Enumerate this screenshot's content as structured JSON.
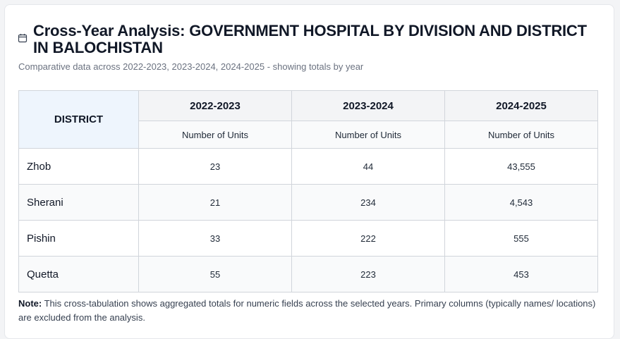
{
  "header": {
    "title": "Cross-Year Analysis: GOVERNMENT HOSPITAL BY DIVISION AND DISTRICT IN BALOCHISTAN",
    "subtitle": "Comparative data across 2022-2023, 2023-2024, 2024-2025 - showing totals by year",
    "icon": "calendar-icon"
  },
  "table": {
    "district_header": "DISTRICT",
    "years": [
      "2022-2023",
      "2023-2024",
      "2024-2025"
    ],
    "unit_label": "Number of Units",
    "rows": [
      {
        "district": "Zhob",
        "values": [
          "23",
          "44",
          "43,555"
        ]
      },
      {
        "district": "Sherani",
        "values": [
          "21",
          "234",
          "4,543"
        ]
      },
      {
        "district": "Pishin",
        "values": [
          "33",
          "222",
          "555"
        ]
      },
      {
        "district": "Quetta",
        "values": [
          "55",
          "223",
          "453"
        ]
      }
    ]
  },
  "note": {
    "label": "Note:",
    "text": " This cross-tabulation shows aggregated totals for numeric fields across the selected years. Primary columns (typically names/ locations) are excluded from the analysis."
  }
}
